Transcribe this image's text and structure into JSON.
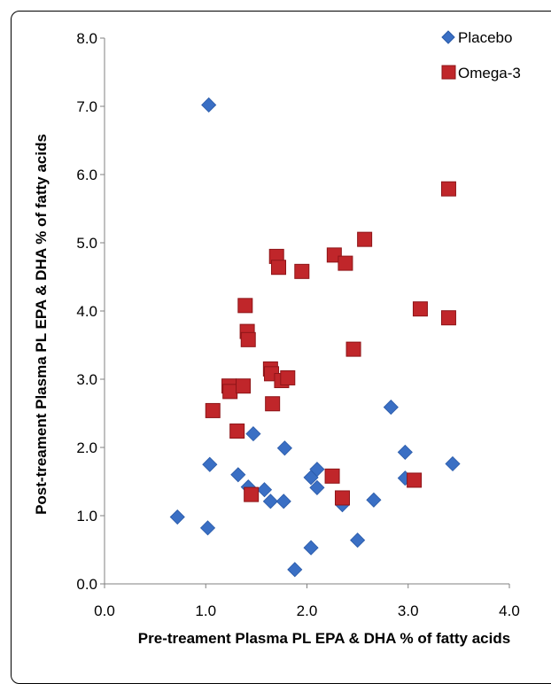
{
  "chart_data": {
    "type": "scatter",
    "xlabel": "Pre-treament Plasma PL EPA & DHA % of fatty acids",
    "ylabel": "Post-treament Plasma PL EPA & DHA % of fatty acids",
    "xlim": [
      0,
      4
    ],
    "ylim": [
      0,
      8
    ],
    "xticks": [
      "0.0",
      "1.0",
      "2.0",
      "3.0",
      "4.0"
    ],
    "yticks": [
      "0.0",
      "1.0",
      "2.0",
      "3.0",
      "4.0",
      "5.0",
      "6.0",
      "7.0",
      "8.0"
    ],
    "grid": false,
    "legend_position": "top-right",
    "series": [
      {
        "name": "Placebo",
        "marker": "diamond",
        "color": "#3a6fc4",
        "points": [
          [
            0.72,
            0.98
          ],
          [
            1.02,
            0.82
          ],
          [
            1.03,
            7.02
          ],
          [
            1.04,
            1.75
          ],
          [
            1.32,
            1.6
          ],
          [
            1.42,
            1.42
          ],
          [
            1.47,
            2.2
          ],
          [
            1.58,
            1.38
          ],
          [
            1.64,
            1.21
          ],
          [
            1.77,
            1.21
          ],
          [
            1.78,
            1.99
          ],
          [
            1.88,
            0.21
          ],
          [
            2.04,
            0.53
          ],
          [
            2.04,
            1.56
          ],
          [
            2.1,
            1.68
          ],
          [
            2.1,
            1.41
          ],
          [
            2.35,
            1.16
          ],
          [
            2.5,
            0.64
          ],
          [
            2.66,
            1.23
          ],
          [
            2.83,
            2.59
          ],
          [
            2.97,
            1.93
          ],
          [
            2.97,
            1.55
          ],
          [
            3.44,
            1.76
          ]
        ]
      },
      {
        "name": "Omega-3",
        "marker": "square",
        "color": "#c0262a",
        "points": [
          [
            1.07,
            2.54
          ],
          [
            1.23,
            2.9
          ],
          [
            1.24,
            2.82
          ],
          [
            1.31,
            2.24
          ],
          [
            1.37,
            2.9
          ],
          [
            1.39,
            4.08
          ],
          [
            1.41,
            3.7
          ],
          [
            1.42,
            3.58
          ],
          [
            1.45,
            1.31
          ],
          [
            1.64,
            3.15
          ],
          [
            1.65,
            3.08
          ],
          [
            1.66,
            2.64
          ],
          [
            1.7,
            4.8
          ],
          [
            1.72,
            4.64
          ],
          [
            1.75,
            2.98
          ],
          [
            1.81,
            3.02
          ],
          [
            1.95,
            4.58
          ],
          [
            2.25,
            1.58
          ],
          [
            2.27,
            4.82
          ],
          [
            2.35,
            1.26
          ],
          [
            2.38,
            4.7
          ],
          [
            2.46,
            3.44
          ],
          [
            2.57,
            5.05
          ],
          [
            3.06,
            1.52
          ],
          [
            3.12,
            4.03
          ],
          [
            3.4,
            5.79
          ],
          [
            3.4,
            3.9
          ]
        ]
      }
    ]
  }
}
